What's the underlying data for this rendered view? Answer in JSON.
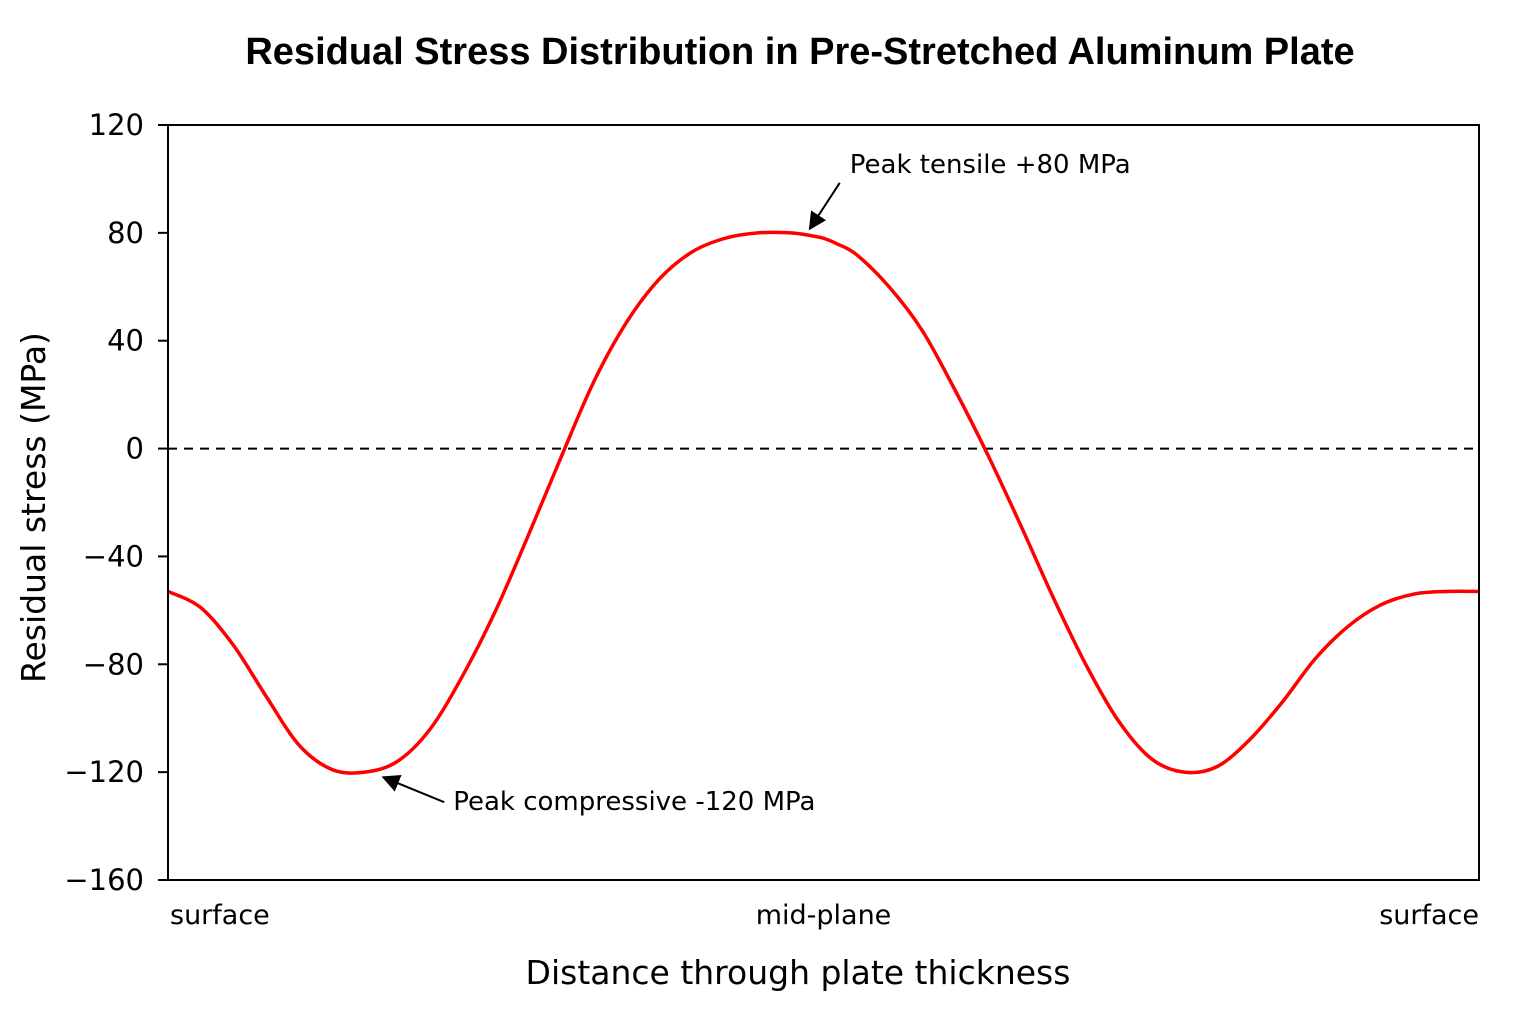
{
  "chart_data": {
    "type": "line",
    "title": "Residual Stress Distribution in Pre-Stretched Aluminum Plate",
    "xlabel": "Distance through plate thickness",
    "ylabel": "Residual stress (MPa)",
    "ylim": [
      -160,
      120
    ],
    "yticks": [
      120,
      80,
      40,
      0,
      -40,
      -80,
      -120,
      -160
    ],
    "ytick_labels": [
      "120",
      "80",
      "40",
      "0",
      "−40",
      "−80",
      "−120",
      "−160"
    ],
    "xlim": [
      0,
      1
    ],
    "xticks": [
      {
        "x": 0.0,
        "label": "surface"
      },
      {
        "x": 0.5,
        "label": "mid-plane"
      },
      {
        "x": 1.0,
        "label": "surface"
      }
    ],
    "grid": false,
    "zero_line": {
      "y": 0,
      "style": "dashed",
      "color": "#000000"
    },
    "series": [
      {
        "color": "#ff0000",
        "x": [
          0.0,
          0.025,
          0.05,
          0.075,
          0.1,
          0.125,
          0.15,
          0.175,
          0.2,
          0.225,
          0.25,
          0.275,
          0.3,
          0.325,
          0.35,
          0.375,
          0.4,
          0.425,
          0.45,
          0.475,
          0.49,
          0.5,
          0.51,
          0.525,
          0.55,
          0.575,
          0.6,
          0.625,
          0.65,
          0.675,
          0.7,
          0.725,
          0.75,
          0.775,
          0.8,
          0.825,
          0.85,
          0.875,
          0.9,
          0.925,
          0.95,
          0.975,
          1.0
        ],
        "y": [
          -53,
          -59,
          -73,
          -92,
          -110,
          -119,
          -120,
          -116,
          -104,
          -84,
          -60,
          -32,
          -3,
          25,
          47,
          63,
          73,
          78,
          80,
          80,
          79,
          78,
          76,
          72,
          60,
          44,
          22,
          -2,
          -28,
          -55,
          -80,
          -101,
          -115,
          -120,
          -118,
          -108,
          -94,
          -78,
          -66,
          -58,
          -54,
          -53,
          -53
        ]
      }
    ],
    "annotations": [
      {
        "text": "Peak tensile +80 MPa",
        "x": 0.488,
        "y": 80
      },
      {
        "text": "Peak compressive -120 MPa",
        "x": 0.155,
        "y": -120
      }
    ]
  }
}
